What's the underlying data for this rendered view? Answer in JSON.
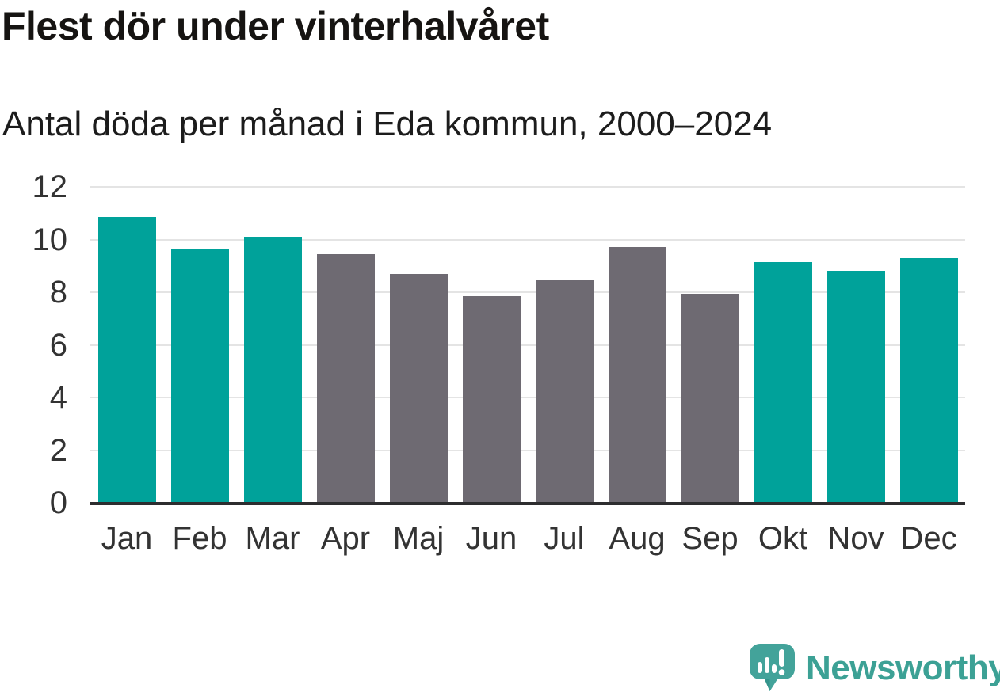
{
  "page": {
    "background": "#ffffff"
  },
  "chart_data": {
    "type": "bar",
    "title": "Flest dör under vinterhalvåret",
    "subtitle": "Antal döda per månad i Eda kommun, 2000–2024",
    "categories": [
      "Jan",
      "Feb",
      "Mar",
      "Apr",
      "Maj",
      "Jun",
      "Jul",
      "Aug",
      "Sep",
      "Okt",
      "Nov",
      "Dec"
    ],
    "values": [
      10.85,
      9.65,
      10.1,
      9.45,
      8.7,
      7.85,
      8.45,
      9.7,
      7.95,
      9.15,
      8.8,
      9.3
    ],
    "bar_colors": [
      "teal",
      "teal",
      "teal",
      "gray",
      "gray",
      "gray",
      "gray",
      "gray",
      "gray",
      "teal",
      "teal",
      "teal"
    ],
    "palette": {
      "teal": "#00a29a",
      "gray": "#6e6a72"
    },
    "xlabel": "",
    "ylabel": "",
    "ylim": [
      0,
      12
    ],
    "yticks": [
      0,
      2,
      4,
      6,
      8,
      10,
      12
    ],
    "grid": "horizontal-only",
    "legend": "none"
  },
  "axis": {
    "tick_color": "#333333",
    "gridline_color": "#e4e4e4",
    "baseline_color": "#2d2d2f"
  },
  "brand": {
    "name": "Newsworthy",
    "text_color": "#3ca195",
    "icon": "newsworthy-speech-bubble-chart-icon",
    "icon_color": "#43a39a",
    "icon_shade_color": "#35948c",
    "icon_glyph_color": "#ffffff"
  }
}
